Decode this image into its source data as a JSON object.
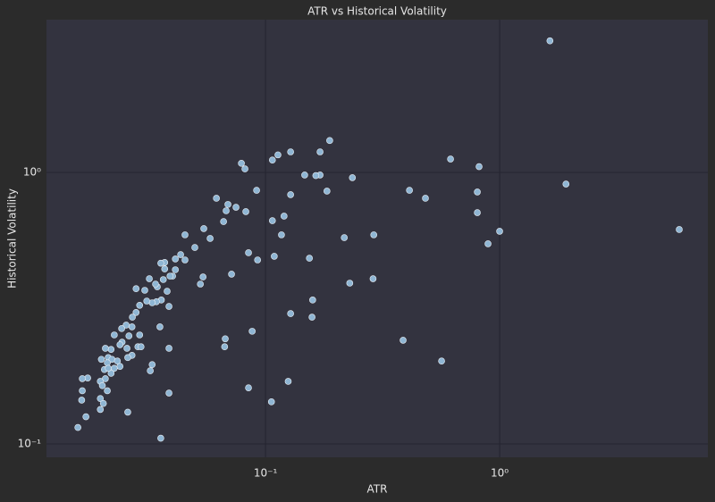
{
  "chart_data": {
    "type": "scatter",
    "title": "ATR vs Historical Volatility",
    "x_label": "ATR",
    "y_label": "Historical Volatility",
    "xscale": "log",
    "yscale": "log",
    "grid": true,
    "color": "#8fb6d4",
    "xlim": [
      0.0116,
      7.75
    ],
    "ylim": [
      0.0893,
      3.65
    ],
    "xticks": [
      {
        "value": 0.1,
        "label": "10⁻¹"
      },
      {
        "value": 1,
        "label": "10⁰"
      }
    ],
    "yticks": [
      {
        "value": 0.1,
        "label": "10⁻¹"
      },
      {
        "value": 1,
        "label": "10⁰"
      }
    ],
    "x": [
      1.64,
      5.85,
      1.92,
      0.817,
      0.617,
      0.803,
      0.803,
      1.0,
      0.892,
      0.412,
      0.482,
      0.565,
      0.387,
      0.29,
      0.288,
      0.229,
      0.217,
      0.235,
      0.188,
      0.171,
      0.171,
      0.164,
      0.147,
      0.183,
      0.154,
      0.159,
      0.158,
      0.128,
      0.113,
      0.107,
      0.128,
      0.12,
      0.107,
      0.117,
      0.109,
      0.128,
      0.125,
      0.106,
      0.0916,
      0.0925,
      0.0846,
      0.0877,
      0.0846,
      0.0789,
      0.0817,
      0.0824,
      0.0748,
      0.0691,
      0.0679,
      0.0617,
      0.0662,
      0.0716,
      0.0673,
      0.0669,
      0.058,
      0.0545,
      0.0541,
      0.0527,
      0.0499,
      0.0453,
      0.0453,
      0.0434,
      0.0412,
      0.0412,
      0.0401,
      0.0391,
      0.0371,
      0.0371,
      0.0357,
      0.0366,
      0.0345,
      0.038,
      0.0359,
      0.0387,
      0.0342,
      0.0328,
      0.0339,
      0.0319,
      0.0305,
      0.0311,
      0.029,
      0.028,
      0.028,
      0.027,
      0.0354,
      0.0387,
      0.0387,
      0.0322,
      0.0357,
      0.029,
      0.0285,
      0.0294,
      0.0269,
      0.0261,
      0.0254,
      0.0243,
      0.0244,
      0.0256,
      0.0269,
      0.0258,
      0.0239,
      0.0226,
      0.0219,
      0.0207,
      0.0213,
      0.0221,
      0.0233,
      0.0239,
      0.0226,
      0.0211,
      0.0199,
      0.0205,
      0.0219,
      0.0207,
      0.0213,
      0.0197,
      0.0201,
      0.0211,
      0.0197,
      0.0203,
      0.0197,
      0.0174,
      0.0165,
      0.0165,
      0.0164,
      0.0171,
      0.0158,
      0.0258,
      0.0328
    ],
    "y": [
      3.05,
      0.616,
      0.906,
      1.05,
      1.12,
      0.847,
      0.711,
      0.607,
      0.546,
      0.859,
      0.803,
      0.202,
      0.241,
      0.589,
      0.406,
      0.391,
      0.575,
      0.956,
      1.31,
      1.19,
      0.978,
      0.973,
      0.978,
      0.853,
      0.483,
      0.339,
      0.293,
      1.19,
      1.16,
      1.11,
      0.828,
      0.69,
      0.664,
      0.589,
      0.491,
      0.302,
      0.17,
      0.143,
      0.859,
      0.476,
      0.506,
      0.26,
      0.161,
      1.08,
      1.03,
      0.717,
      0.744,
      0.762,
      0.722,
      0.803,
      0.659,
      0.422,
      0.244,
      0.228,
      0.571,
      0.621,
      0.412,
      0.388,
      0.529,
      0.589,
      0.476,
      0.498,
      0.48,
      0.438,
      0.415,
      0.415,
      0.466,
      0.441,
      0.463,
      0.403,
      0.379,
      0.365,
      0.339,
      0.321,
      0.334,
      0.331,
      0.388,
      0.406,
      0.368,
      0.336,
      0.324,
      0.373,
      0.305,
      0.293,
      0.27,
      0.225,
      0.154,
      0.186,
      0.105,
      0.252,
      0.228,
      0.228,
      0.27,
      0.25,
      0.274,
      0.266,
      0.237,
      0.225,
      0.212,
      0.208,
      0.232,
      0.252,
      0.223,
      0.225,
      0.208,
      0.205,
      0.202,
      0.193,
      0.19,
      0.199,
      0.205,
      0.188,
      0.182,
      0.174,
      0.19,
      0.17,
      0.164,
      0.157,
      0.147,
      0.141,
      0.134,
      0.175,
      0.174,
      0.157,
      0.145,
      0.126,
      0.115,
      0.131,
      0.196
    ]
  }
}
